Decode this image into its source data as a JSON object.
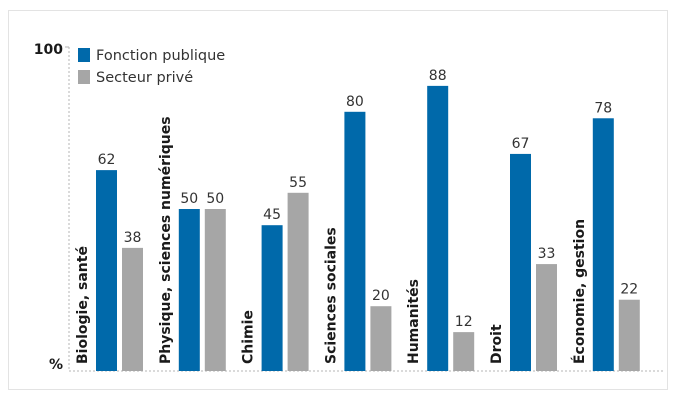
{
  "chart_data": {
    "type": "bar",
    "categories": [
      "Biologie, santé",
      "Physique, sciences numériques",
      "Chimie",
      "Sciences sociales",
      "Humanités",
      "Droit",
      "Économie, gestion"
    ],
    "series": [
      {
        "name": "Fonction publique",
        "color": "#0069aa",
        "values": [
          62,
          50,
          45,
          80,
          88,
          67,
          78
        ]
      },
      {
        "name": "Secteur privé",
        "color": "#a6a6a6",
        "values": [
          38,
          50,
          55,
          20,
          12,
          33,
          22
        ]
      }
    ],
    "ylim": [
      0,
      100
    ],
    "y_max_label": "100",
    "y_unit_label": "%",
    "legend_position": "top-left",
    "grid": false
  }
}
